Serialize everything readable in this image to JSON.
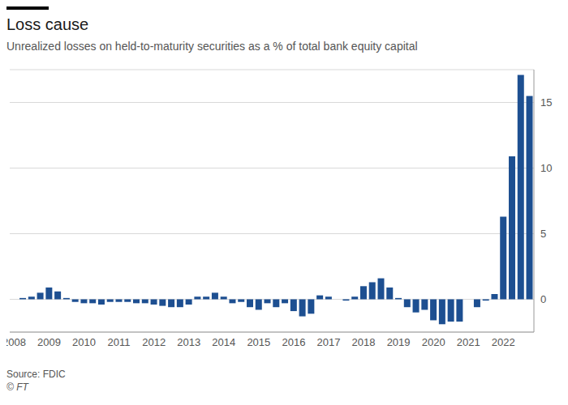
{
  "chart_data": {
    "type": "bar",
    "title": "Loss cause",
    "subtitle": "Unrealized losses on held-to-maturity securities as a % of total bank equity capital",
    "source": "Source: FDIC",
    "credit": "© FT",
    "categories": [
      "2008",
      null,
      null,
      null,
      "2009",
      null,
      null,
      null,
      "2010",
      null,
      null,
      null,
      "2011",
      null,
      null,
      null,
      "2012",
      null,
      null,
      null,
      "2013",
      null,
      null,
      null,
      "2014",
      null,
      null,
      null,
      "2015",
      null,
      null,
      null,
      "2016",
      null,
      null,
      null,
      "2017",
      null,
      null,
      null,
      "2018",
      null,
      null,
      null,
      "2019",
      null,
      null,
      null,
      "2020",
      null,
      null,
      null,
      "2021",
      null,
      null,
      null,
      "2022",
      null,
      null,
      null
    ],
    "values": [
      0.0,
      0.1,
      0.2,
      0.5,
      0.9,
      0.6,
      0.1,
      -0.2,
      -0.3,
      -0.3,
      -0.4,
      -0.2,
      -0.2,
      -0.2,
      -0.3,
      -0.3,
      -0.4,
      -0.5,
      -0.6,
      -0.6,
      -0.4,
      0.2,
      0.2,
      0.5,
      0.2,
      -0.3,
      -0.2,
      -0.6,
      -0.8,
      -0.3,
      -0.6,
      -0.3,
      -0.9,
      -1.3,
      -1.1,
      0.3,
      0.2,
      0.0,
      -0.1,
      0.2,
      1.0,
      1.3,
      1.6,
      0.9,
      0.1,
      -0.6,
      -1.0,
      -0.8,
      -1.6,
      -1.9,
      -1.7,
      -1.7,
      0.0,
      -0.6,
      -0.1,
      0.4,
      6.3,
      10.9,
      17.1,
      15.5
    ],
    "color": "#1d4f91",
    "ylim": [
      -2.5,
      17.5
    ],
    "yticks": [
      0,
      5,
      10,
      15
    ],
    "grid": true
  }
}
